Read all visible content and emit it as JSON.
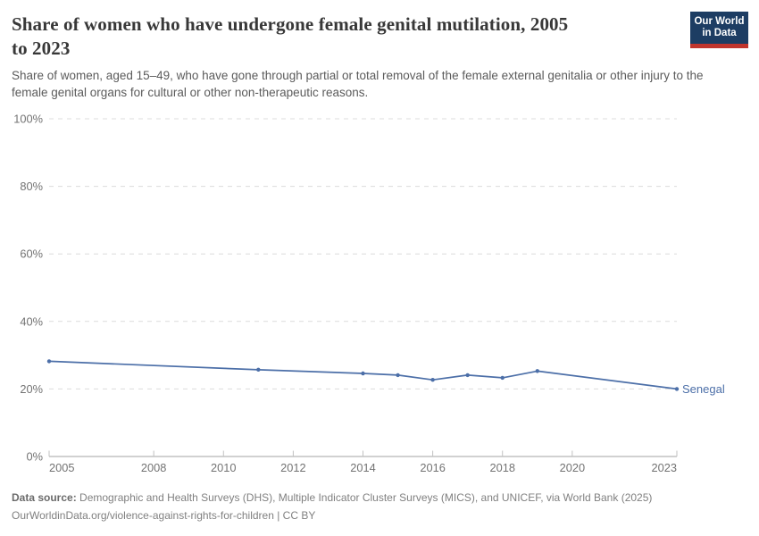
{
  "header": {
    "title_lines": [
      "Share of women who have undergone female genital mutilation, 2005",
      "to 2023"
    ],
    "title_full": "Share of women who have undergone female genital mutilation, 2005 to 2023",
    "subtitle": "Share of women, aged 15–49, who have gone through partial or total removal of the female external genitalia or other injury to the female genital organs for cultural or other non-therapeutic reasons.",
    "logo": {
      "line1": "Our World",
      "line2": "in Data",
      "bg_color": "#1d3d63",
      "accent_color": "#c0352d"
    }
  },
  "chart_data": {
    "type": "line",
    "title": "Share of women who have undergone female genital mutilation, 2005 to 2023",
    "x": [
      2005,
      2011,
      2014,
      2015,
      2016,
      2017,
      2018,
      2019,
      2023
    ],
    "series": [
      {
        "name": "Senegal",
        "color": "#4c6fa8",
        "values": [
          28.2,
          25.7,
          24.6,
          24.1,
          22.7,
          24.1,
          23.3,
          25.3,
          20.0
        ]
      }
    ],
    "x_ticks": [
      2005,
      2008,
      2010,
      2012,
      2014,
      2016,
      2018,
      2020,
      2023
    ],
    "y_ticks": [
      0,
      20,
      40,
      60,
      80,
      100
    ],
    "y_unit": "%",
    "xlim": [
      2005,
      2023
    ],
    "ylim": [
      0,
      100
    ],
    "grid": "horizontal-dashed",
    "legend": "end-of-line-label",
    "colors": {
      "gridline": "#dcdcdc",
      "axis_line": "#a3a3a3",
      "tick_mark": "#c2c2c2",
      "tick_label": "#737373"
    }
  },
  "footer": {
    "source_label": "Data source:",
    "source_text": " Demographic and Health Surveys (DHS), Multiple Indicator Cluster Surveys (MICS), and UNICEF, via World Bank (2025)",
    "license_text": "OurWorldinData.org/violence-against-rights-for-children | CC BY"
  }
}
